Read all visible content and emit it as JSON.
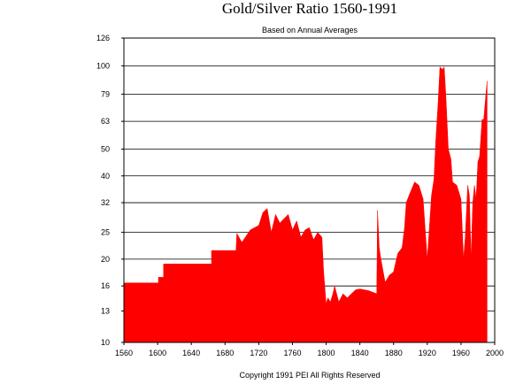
{
  "chart_data": {
    "type": "area",
    "title": "Gold/Silver Ratio 1560-1991",
    "subtitle": "Based on Annual Averages",
    "footer": "Copyright 1991 PEI All Rights Reserved",
    "xlabel": "",
    "ylabel": "",
    "xlim": [
      1560,
      2000
    ],
    "ylim": [
      10,
      126
    ],
    "y_scale": "log",
    "grid": true,
    "legend": "none",
    "fill_color": "#ff0000",
    "x_ticks": [
      1560,
      1600,
      1640,
      1680,
      1720,
      1760,
      1800,
      1840,
      1880,
      1920,
      1960,
      2000
    ],
    "y_ticks": [
      10,
      13,
      16,
      20,
      25,
      32,
      40,
      50,
      63,
      79,
      100,
      126
    ],
    "series": [
      {
        "x": [
          1560,
          1601,
          1601,
          1607,
          1607,
          1612,
          1612,
          1664,
          1664,
          1693,
          1694,
          1700,
          1710,
          1720,
          1725,
          1730,
          1735,
          1740,
          1745,
          1750,
          1755,
          1760,
          1765,
          1770,
          1775,
          1780,
          1785,
          1790,
          1795,
          1797,
          1800,
          1802,
          1805,
          1808,
          1810,
          1815,
          1820,
          1825,
          1830,
          1835,
          1840,
          1845,
          1850,
          1855,
          1860,
          1861,
          1863,
          1865,
          1870,
          1875,
          1880,
          1885,
          1890,
          1893,
          1895,
          1900,
          1905,
          1910,
          1915,
          1920,
          1925,
          1928,
          1930,
          1933,
          1935,
          1938,
          1940,
          1942,
          1945,
          1948,
          1950,
          1955,
          1960,
          1963,
          1965,
          1968,
          1970,
          1972,
          1974,
          1976,
          1978,
          1980,
          1982,
          1985,
          1987,
          1990,
          1991
        ],
        "values": [
          16.4,
          16.4,
          17.2,
          17.2,
          19.2,
          19.2,
          19.2,
          19.2,
          21.5,
          21.5,
          24.8,
          23.0,
          25.5,
          26.5,
          29.5,
          30.5,
          25.0,
          29.0,
          27.0,
          28.0,
          29.0,
          25.5,
          27.5,
          24.0,
          25.5,
          26.0,
          23.5,
          25.0,
          24.0,
          18.0,
          13.8,
          14.5,
          14.0,
          15.0,
          16.0,
          14.0,
          15.0,
          14.5,
          15.0,
          15.5,
          15.6,
          15.5,
          15.4,
          15.2,
          15.0,
          30.0,
          22.0,
          20.0,
          16.5,
          17.5,
          18.0,
          21.0,
          22.0,
          26.0,
          32.0,
          35.0,
          38.0,
          37.0,
          33.0,
          20.0,
          34.0,
          39.0,
          53.0,
          75.0,
          99.0,
          97.0,
          99.0,
          78.0,
          50.0,
          46.0,
          38.0,
          37.0,
          33.0,
          20.0,
          24.0,
          37.0,
          34.0,
          20.0,
          32.0,
          37.0,
          33.0,
          45.0,
          47.0,
          64.0,
          64.0,
          82.0,
          88.0
        ]
      }
    ]
  }
}
